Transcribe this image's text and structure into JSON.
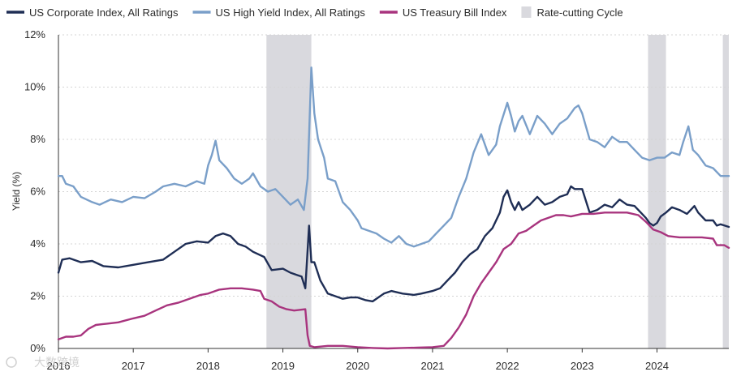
{
  "chart_data": {
    "type": "line",
    "ylabel": "Yield (%)",
    "ylim": [
      0,
      12
    ],
    "xlim": [
      2016.0,
      2024.96
    ],
    "y_ticks": [
      0,
      2,
      4,
      6,
      8,
      10,
      12
    ],
    "y_tick_labels": [
      "0%",
      "2%",
      "4%",
      "6%",
      "8%",
      "10%",
      "12%"
    ],
    "x_ticks": [
      2016,
      2017,
      2018,
      2019,
      2020,
      2021,
      2022,
      2023,
      2024
    ],
    "x_tick_labels": [
      "2016",
      "2017",
      "2018",
      "2019",
      "2020",
      "2021",
      "2022",
      "2023",
      "2024"
    ],
    "grid": "horizontal",
    "legend_placement": "top",
    "legend": {
      "shaded_label": "Rate-cutting Cycle",
      "shaded_color": "#d9d9de"
    },
    "shaded_regions": [
      {
        "start": 2018.78,
        "end": 2019.38
      },
      {
        "start": 2023.88,
        "end": 2024.12
      },
      {
        "start": 2024.88,
        "end": 2024.96
      }
    ],
    "series": [
      {
        "name": "US Corporate Index, All Ratings",
        "color": "#1f2e55",
        "points": [
          [
            2016.0,
            2.9
          ],
          [
            2016.05,
            3.4
          ],
          [
            2016.15,
            3.45
          ],
          [
            2016.3,
            3.3
          ],
          [
            2016.45,
            3.35
          ],
          [
            2016.6,
            3.15
          ],
          [
            2016.8,
            3.1
          ],
          [
            2017.0,
            3.2
          ],
          [
            2017.2,
            3.3
          ],
          [
            2017.4,
            3.4
          ],
          [
            2017.55,
            3.7
          ],
          [
            2017.7,
            4.0
          ],
          [
            2017.85,
            4.1
          ],
          [
            2018.0,
            4.05
          ],
          [
            2018.1,
            4.3
          ],
          [
            2018.2,
            4.4
          ],
          [
            2018.3,
            4.3
          ],
          [
            2018.4,
            4.0
          ],
          [
            2018.5,
            3.9
          ],
          [
            2018.6,
            3.7
          ],
          [
            2018.75,
            3.5
          ],
          [
            2018.85,
            3.0
          ],
          [
            2019.0,
            3.05
          ],
          [
            2019.1,
            2.9
          ],
          [
            2019.2,
            2.8
          ],
          [
            2019.25,
            2.75
          ],
          [
            2019.3,
            2.3
          ],
          [
            2019.35,
            4.7
          ],
          [
            2019.38,
            3.3
          ],
          [
            2019.42,
            3.3
          ],
          [
            2019.5,
            2.6
          ],
          [
            2019.6,
            2.1
          ],
          [
            2019.7,
            2.0
          ],
          [
            2019.8,
            1.9
          ],
          [
            2019.9,
            1.95
          ],
          [
            2020.0,
            1.95
          ],
          [
            2020.1,
            1.85
          ],
          [
            2020.2,
            1.8
          ],
          [
            2020.3,
            2.0
          ],
          [
            2020.35,
            2.1
          ],
          [
            2020.45,
            2.2
          ],
          [
            2020.6,
            2.1
          ],
          [
            2020.75,
            2.05
          ],
          [
            2020.85,
            2.1
          ],
          [
            2021.0,
            2.2
          ],
          [
            2021.1,
            2.3
          ],
          [
            2021.2,
            2.6
          ],
          [
            2021.3,
            2.9
          ],
          [
            2021.4,
            3.3
          ],
          [
            2021.5,
            3.6
          ],
          [
            2021.6,
            3.8
          ],
          [
            2021.7,
            4.3
          ],
          [
            2021.8,
            4.6
          ],
          [
            2021.9,
            5.2
          ],
          [
            2021.95,
            5.8
          ],
          [
            2022.0,
            6.05
          ],
          [
            2022.05,
            5.6
          ],
          [
            2022.1,
            5.3
          ],
          [
            2022.15,
            5.6
          ],
          [
            2022.2,
            5.3
          ],
          [
            2022.3,
            5.5
          ],
          [
            2022.4,
            5.8
          ],
          [
            2022.5,
            5.5
          ],
          [
            2022.6,
            5.6
          ],
          [
            2022.7,
            5.8
          ],
          [
            2022.8,
            5.9
          ],
          [
            2022.85,
            6.2
          ],
          [
            2022.9,
            6.1
          ],
          [
            2023.0,
            6.1
          ],
          [
            2023.1,
            5.2
          ],
          [
            2023.2,
            5.3
          ],
          [
            2023.3,
            5.5
          ],
          [
            2023.4,
            5.4
          ],
          [
            2023.5,
            5.7
          ],
          [
            2023.6,
            5.5
          ],
          [
            2023.7,
            5.45
          ],
          [
            2023.8,
            5.15
          ],
          [
            2023.85,
            5.0
          ],
          [
            2023.9,
            4.8
          ],
          [
            2023.95,
            4.7
          ],
          [
            2024.0,
            4.8
          ],
          [
            2024.05,
            5.05
          ],
          [
            2024.12,
            5.2
          ],
          [
            2024.2,
            5.4
          ],
          [
            2024.3,
            5.3
          ],
          [
            2024.4,
            5.15
          ],
          [
            2024.5,
            5.45
          ],
          [
            2024.55,
            5.2
          ],
          [
            2024.65,
            4.9
          ],
          [
            2024.75,
            4.9
          ],
          [
            2024.8,
            4.7
          ],
          [
            2024.85,
            4.75
          ],
          [
            2024.96,
            4.65
          ]
        ]
      },
      {
        "name": "US High Yield Index, All Ratings",
        "color": "#7a9fc9",
        "points": [
          [
            2016.0,
            6.6
          ],
          [
            2016.05,
            6.6
          ],
          [
            2016.1,
            6.3
          ],
          [
            2016.2,
            6.2
          ],
          [
            2016.3,
            5.8
          ],
          [
            2016.45,
            5.6
          ],
          [
            2016.55,
            5.5
          ],
          [
            2016.7,
            5.7
          ],
          [
            2016.85,
            5.6
          ],
          [
            2017.0,
            5.8
          ],
          [
            2017.15,
            5.75
          ],
          [
            2017.3,
            6.0
          ],
          [
            2017.4,
            6.2
          ],
          [
            2017.55,
            6.3
          ],
          [
            2017.7,
            6.2
          ],
          [
            2017.85,
            6.4
          ],
          [
            2017.95,
            6.3
          ],
          [
            2018.0,
            7.0
          ],
          [
            2018.05,
            7.4
          ],
          [
            2018.1,
            7.95
          ],
          [
            2018.15,
            7.2
          ],
          [
            2018.25,
            6.9
          ],
          [
            2018.35,
            6.5
          ],
          [
            2018.45,
            6.3
          ],
          [
            2018.55,
            6.5
          ],
          [
            2018.6,
            6.7
          ],
          [
            2018.7,
            6.2
          ],
          [
            2018.8,
            6.0
          ],
          [
            2018.9,
            6.1
          ],
          [
            2019.0,
            5.8
          ],
          [
            2019.1,
            5.5
          ],
          [
            2019.2,
            5.7
          ],
          [
            2019.28,
            5.3
          ],
          [
            2019.33,
            6.5
          ],
          [
            2019.38,
            10.75
          ],
          [
            2019.42,
            9.0
          ],
          [
            2019.47,
            8.0
          ],
          [
            2019.55,
            7.3
          ],
          [
            2019.6,
            6.5
          ],
          [
            2019.7,
            6.4
          ],
          [
            2019.8,
            5.6
          ],
          [
            2019.9,
            5.3
          ],
          [
            2020.0,
            4.9
          ],
          [
            2020.05,
            4.6
          ],
          [
            2020.15,
            4.5
          ],
          [
            2020.25,
            4.4
          ],
          [
            2020.35,
            4.2
          ],
          [
            2020.45,
            4.05
          ],
          [
            2020.55,
            4.3
          ],
          [
            2020.65,
            4.0
          ],
          [
            2020.75,
            3.9
          ],
          [
            2020.85,
            4.0
          ],
          [
            2020.95,
            4.1
          ],
          [
            2021.05,
            4.4
          ],
          [
            2021.15,
            4.7
          ],
          [
            2021.25,
            5.0
          ],
          [
            2021.35,
            5.8
          ],
          [
            2021.45,
            6.5
          ],
          [
            2021.55,
            7.5
          ],
          [
            2021.65,
            8.2
          ],
          [
            2021.75,
            7.4
          ],
          [
            2021.85,
            7.8
          ],
          [
            2021.9,
            8.5
          ],
          [
            2022.0,
            9.4
          ],
          [
            2022.05,
            8.9
          ],
          [
            2022.1,
            8.3
          ],
          [
            2022.15,
            8.7
          ],
          [
            2022.2,
            8.9
          ],
          [
            2022.3,
            8.2
          ],
          [
            2022.4,
            8.9
          ],
          [
            2022.5,
            8.6
          ],
          [
            2022.6,
            8.2
          ],
          [
            2022.7,
            8.6
          ],
          [
            2022.8,
            8.8
          ],
          [
            2022.9,
            9.2
          ],
          [
            2022.95,
            9.3
          ],
          [
            2023.0,
            9.0
          ],
          [
            2023.05,
            8.5
          ],
          [
            2023.1,
            8.0
          ],
          [
            2023.2,
            7.9
          ],
          [
            2023.3,
            7.7
          ],
          [
            2023.4,
            8.1
          ],
          [
            2023.5,
            7.9
          ],
          [
            2023.6,
            7.9
          ],
          [
            2023.7,
            7.6
          ],
          [
            2023.8,
            7.3
          ],
          [
            2023.9,
            7.2
          ],
          [
            2024.0,
            7.3
          ],
          [
            2024.1,
            7.3
          ],
          [
            2024.2,
            7.5
          ],
          [
            2024.3,
            7.4
          ],
          [
            2024.35,
            7.9
          ],
          [
            2024.42,
            8.5
          ],
          [
            2024.48,
            7.6
          ],
          [
            2024.55,
            7.4
          ],
          [
            2024.65,
            7.0
          ],
          [
            2024.75,
            6.9
          ],
          [
            2024.85,
            6.6
          ],
          [
            2024.96,
            6.6
          ]
        ]
      },
      {
        "name": "US Treasury Bill Index",
        "color": "#a8347e",
        "points": [
          [
            2016.0,
            0.35
          ],
          [
            2016.1,
            0.45
          ],
          [
            2016.2,
            0.45
          ],
          [
            2016.3,
            0.5
          ],
          [
            2016.4,
            0.75
          ],
          [
            2016.5,
            0.9
          ],
          [
            2016.65,
            0.95
          ],
          [
            2016.8,
            1.0
          ],
          [
            2017.0,
            1.15
          ],
          [
            2017.15,
            1.25
          ],
          [
            2017.3,
            1.45
          ],
          [
            2017.45,
            1.65
          ],
          [
            2017.6,
            1.75
          ],
          [
            2017.75,
            1.9
          ],
          [
            2017.9,
            2.05
          ],
          [
            2018.0,
            2.1
          ],
          [
            2018.15,
            2.25
          ],
          [
            2018.3,
            2.3
          ],
          [
            2018.45,
            2.3
          ],
          [
            2018.6,
            2.25
          ],
          [
            2018.7,
            2.2
          ],
          [
            2018.75,
            1.9
          ],
          [
            2018.85,
            1.8
          ],
          [
            2018.95,
            1.6
          ],
          [
            2019.05,
            1.5
          ],
          [
            2019.15,
            1.45
          ],
          [
            2019.3,
            1.5
          ],
          [
            2019.33,
            0.5
          ],
          [
            2019.36,
            0.1
          ],
          [
            2019.42,
            0.05
          ],
          [
            2019.6,
            0.1
          ],
          [
            2019.8,
            0.1
          ],
          [
            2020.0,
            0.05
          ],
          [
            2020.2,
            0.02
          ],
          [
            2020.4,
            0.0
          ],
          [
            2020.6,
            0.02
          ],
          [
            2020.8,
            0.03
          ],
          [
            2021.0,
            0.05
          ],
          [
            2021.15,
            0.1
          ],
          [
            2021.25,
            0.4
          ],
          [
            2021.35,
            0.8
          ],
          [
            2021.45,
            1.3
          ],
          [
            2021.55,
            2.0
          ],
          [
            2021.65,
            2.5
          ],
          [
            2021.75,
            2.9
          ],
          [
            2021.85,
            3.3
          ],
          [
            2021.95,
            3.8
          ],
          [
            2022.05,
            4.0
          ],
          [
            2022.15,
            4.4
          ],
          [
            2022.25,
            4.5
          ],
          [
            2022.35,
            4.7
          ],
          [
            2022.45,
            4.9
          ],
          [
            2022.55,
            5.0
          ],
          [
            2022.65,
            5.1
          ],
          [
            2022.75,
            5.1
          ],
          [
            2022.85,
            5.05
          ],
          [
            2023.0,
            5.15
          ],
          [
            2023.15,
            5.15
          ],
          [
            2023.3,
            5.2
          ],
          [
            2023.45,
            5.2
          ],
          [
            2023.6,
            5.2
          ],
          [
            2023.75,
            5.1
          ],
          [
            2023.85,
            4.85
          ],
          [
            2023.95,
            4.55
          ],
          [
            2024.05,
            4.45
          ],
          [
            2024.15,
            4.3
          ],
          [
            2024.3,
            4.25
          ],
          [
            2024.45,
            4.25
          ],
          [
            2024.6,
            4.25
          ],
          [
            2024.75,
            4.2
          ],
          [
            2024.8,
            3.95
          ],
          [
            2024.9,
            3.95
          ],
          [
            2024.96,
            3.85
          ]
        ]
      }
    ]
  },
  "watermark": "大数跨境"
}
